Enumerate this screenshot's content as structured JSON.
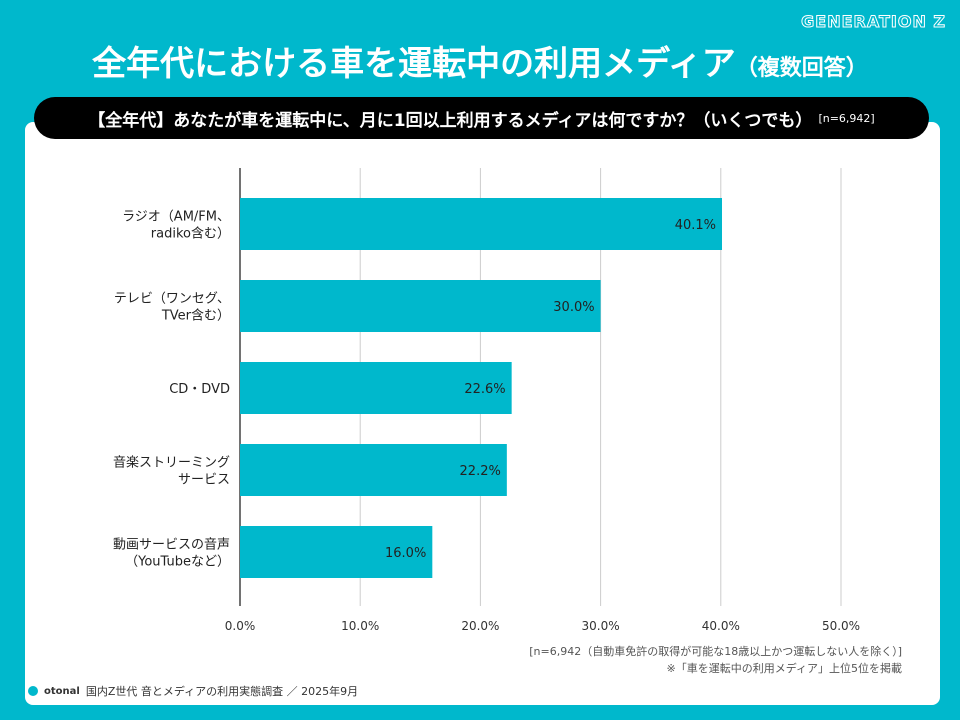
{
  "brand": "GENERATION Z",
  "title": "全年代における車を運転中の利用メディア",
  "title_suffix": "（複数回答）",
  "question": "【全年代】あなたが車を運転中に、月に1回以上利用するメディアは何ですか？（いくつでも）",
  "question_n": "[n=6,942]",
  "colors": {
    "background": "#00B8CC",
    "bar": "#00B8CC"
  },
  "chart_data": {
    "type": "bar",
    "orientation": "horizontal",
    "categories": [
      [
        "ラジオ（AM/FM、",
        "radiko含む）"
      ],
      [
        "テレビ（ワンセグ、",
        "TVer含む）"
      ],
      [
        "CD・DVD"
      ],
      [
        "音楽ストリーミング",
        "サービス"
      ],
      [
        "動画サービスの音声",
        "（YouTubeなど）"
      ]
    ],
    "values": [
      40.1,
      30.0,
      22.6,
      22.2,
      16.0
    ],
    "data_labels": [
      "40.1%",
      "30.0%",
      "22.6%",
      "22.2%",
      "16.0%"
    ],
    "xlim": [
      0,
      50
    ],
    "ticks": [
      "0.0%",
      "10.0%",
      "20.0%",
      "30.0%",
      "40.0%",
      "50.0%"
    ],
    "grid": true
  },
  "notes": {
    "n_note": "[n=6,942（自動車免許の取得が可能な18歳以上かつ運転しない人を除く）]",
    "top5_note": "※「車を運転中の利用メディア」上位5位を掲載"
  },
  "footer": {
    "logo": "otonal",
    "source": "国内Z世代 音とメディアの利用実態調査 ／ 2025年9月"
  }
}
